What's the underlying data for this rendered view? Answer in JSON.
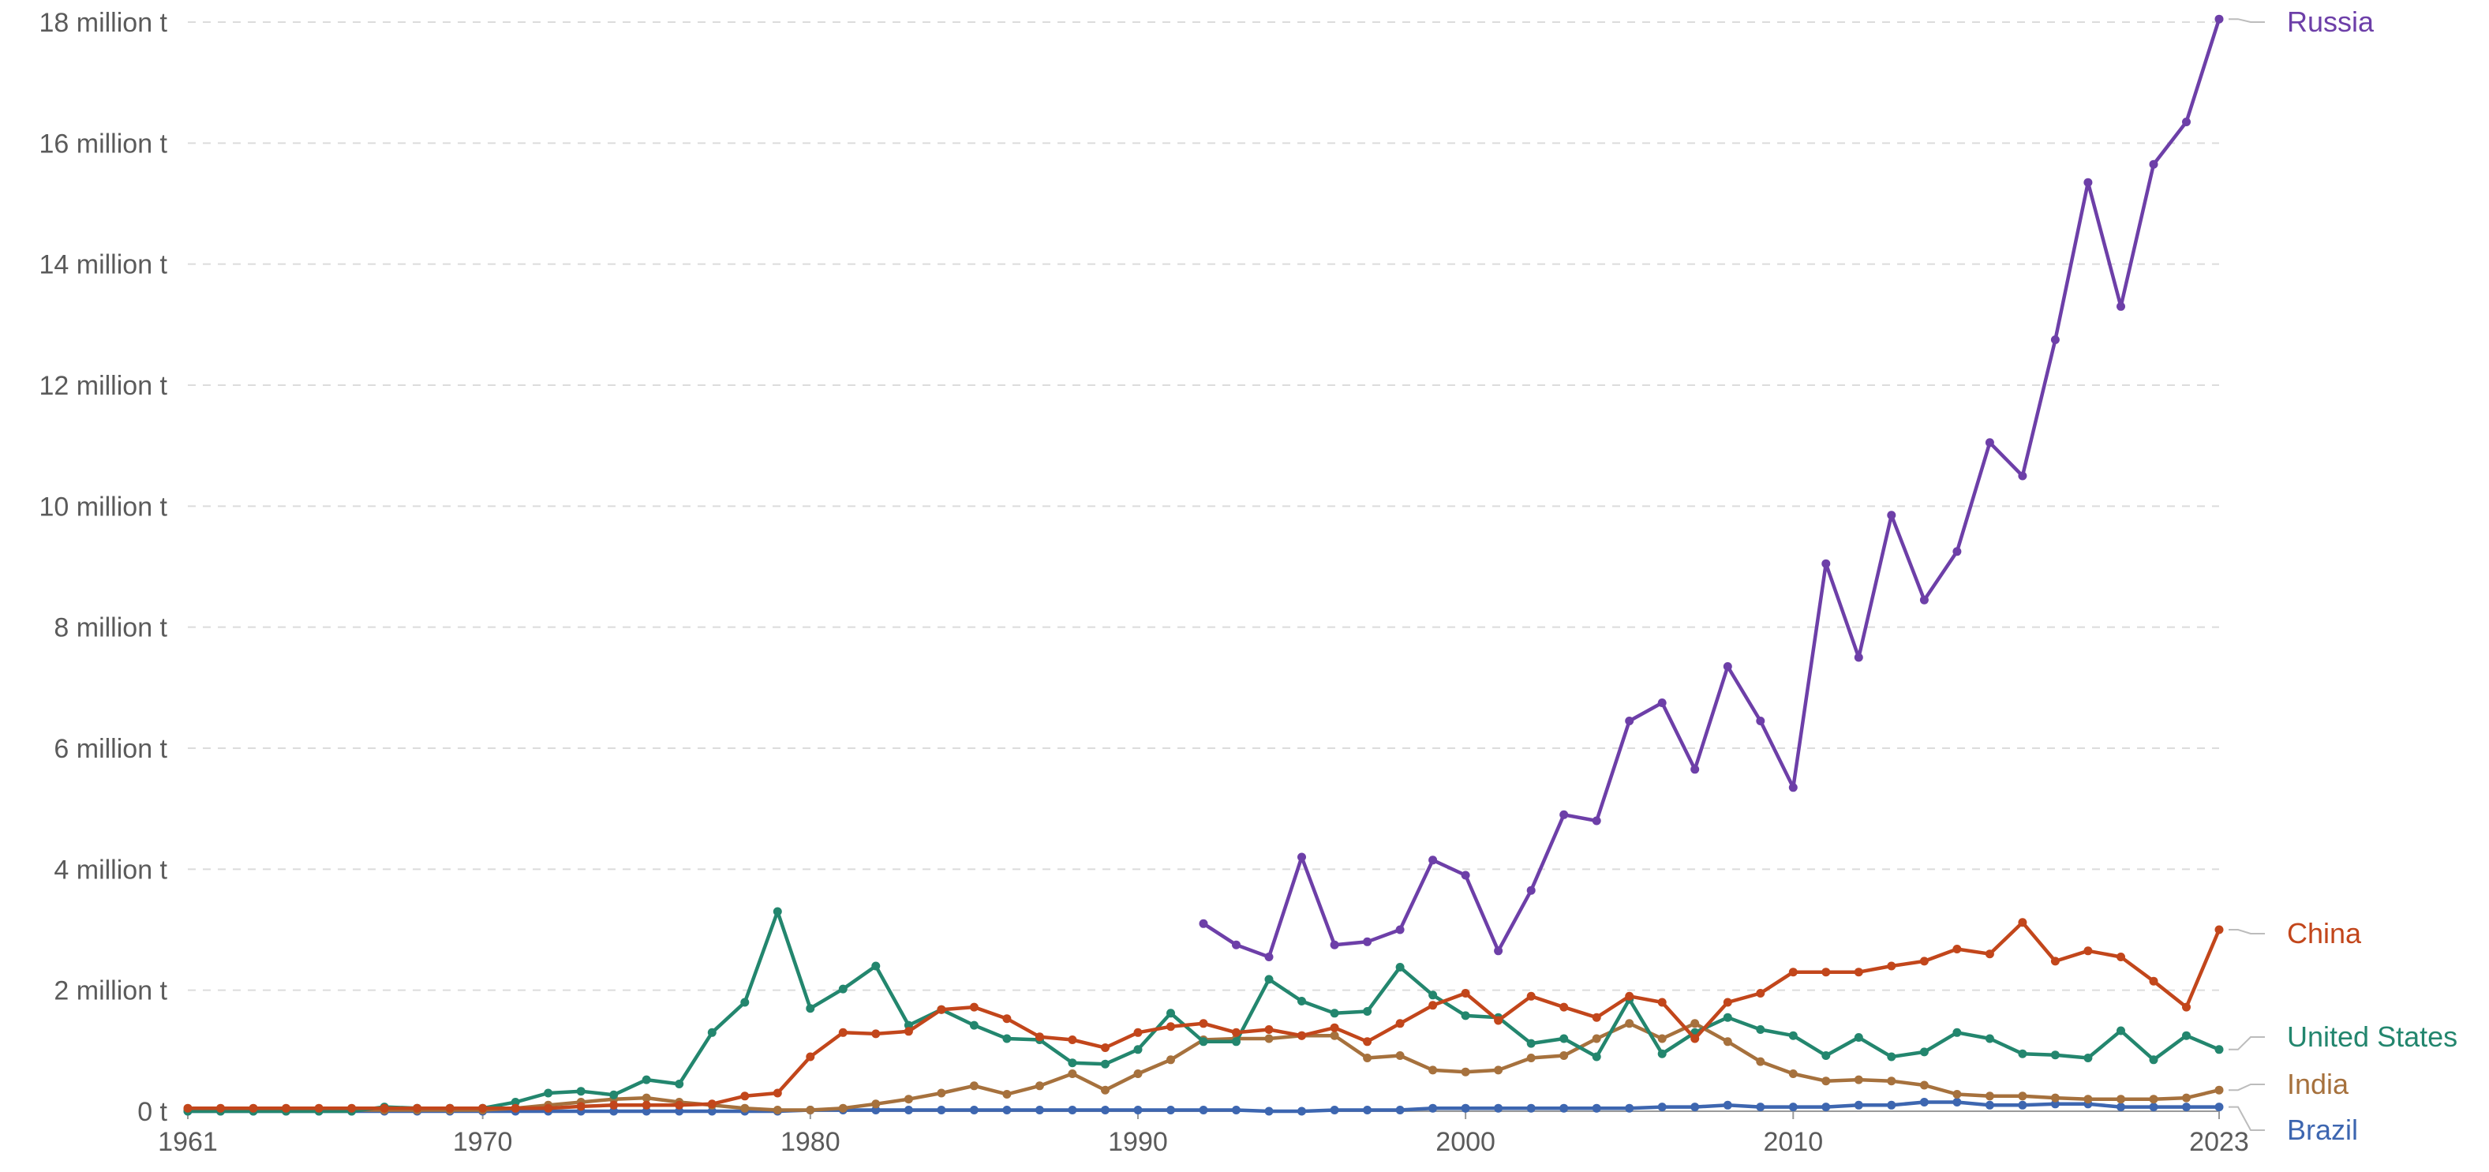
{
  "chart_data": {
    "type": "line",
    "title": "",
    "xlabel": "",
    "ylabel": "",
    "xlim": [
      1961,
      2023
    ],
    "ylim": [
      0,
      18
    ],
    "y_ticks": [
      {
        "value": 0,
        "label": "0 t"
      },
      {
        "value": 2,
        "label": "2 million t"
      },
      {
        "value": 4,
        "label": "4 million t"
      },
      {
        "value": 6,
        "label": "6 million t"
      },
      {
        "value": 8,
        "label": "8 million t"
      },
      {
        "value": 10,
        "label": "10 million t"
      },
      {
        "value": 12,
        "label": "12 million t"
      },
      {
        "value": 14,
        "label": "14 million t"
      },
      {
        "value": 16,
        "label": "16 million t"
      },
      {
        "value": 18,
        "label": "18 million t"
      }
    ],
    "x_ticks": [
      {
        "value": 1961,
        "label": "1961"
      },
      {
        "value": 1970,
        "label": "1970"
      },
      {
        "value": 1980,
        "label": "1980"
      },
      {
        "value": 1990,
        "label": "1990"
      },
      {
        "value": 2000,
        "label": "2000"
      },
      {
        "value": 2010,
        "label": "2010"
      },
      {
        "value": 2023,
        "label": "2023"
      }
    ],
    "grid": true,
    "legend": "right-end labels",
    "series": [
      {
        "name": "Russia",
        "color": "#6d3fa8",
        "x": [
          1992,
          1993,
          1994,
          1995,
          1996,
          1997,
          1998,
          1999,
          2000,
          2001,
          2002,
          2003,
          2004,
          2005,
          2006,
          2007,
          2008,
          2009,
          2010,
          2011,
          2012,
          2013,
          2014,
          2015,
          2016,
          2017,
          2018,
          2019,
          2020,
          2021,
          2022,
          2023
        ],
        "values": [
          3.1,
          2.75,
          2.55,
          4.2,
          2.75,
          2.8,
          3.0,
          4.15,
          3.9,
          2.65,
          3.65,
          4.9,
          4.8,
          6.45,
          6.75,
          5.65,
          7.35,
          6.45,
          5.35,
          9.05,
          7.5,
          9.85,
          8.45,
          9.25,
          11.05,
          10.5,
          12.75,
          15.35,
          13.3,
          15.65,
          16.35,
          18.05
        ]
      },
      {
        "name": "China",
        "color": "#c2461b",
        "x": [
          1961,
          1962,
          1963,
          1964,
          1965,
          1966,
          1967,
          1968,
          1969,
          1970,
          1971,
          1972,
          1973,
          1974,
          1975,
          1976,
          1977,
          1978,
          1979,
          1980,
          1981,
          1982,
          1983,
          1984,
          1985,
          1986,
          1987,
          1988,
          1989,
          1990,
          1991,
          1992,
          1993,
          1994,
          1995,
          1996,
          1997,
          1998,
          1999,
          2000,
          2001,
          2002,
          2003,
          2004,
          2005,
          2006,
          2007,
          2008,
          2009,
          2010,
          2011,
          2012,
          2013,
          2014,
          2015,
          2016,
          2017,
          2018,
          2019,
          2020,
          2021,
          2022,
          2023
        ],
        "values": [
          0.05,
          0.05,
          0.05,
          0.05,
          0.05,
          0.05,
          0.05,
          0.05,
          0.05,
          0.05,
          0.05,
          0.05,
          0.08,
          0.1,
          0.1,
          0.1,
          0.12,
          0.25,
          0.3,
          0.9,
          1.3,
          1.28,
          1.32,
          1.68,
          1.72,
          1.53,
          1.23,
          1.18,
          1.05,
          1.3,
          1.4,
          1.45,
          1.3,
          1.35,
          1.25,
          1.38,
          1.15,
          1.45,
          1.75,
          1.95,
          1.5,
          1.9,
          1.72,
          1.55,
          1.9,
          1.8,
          1.2,
          1.8,
          1.95,
          2.3,
          2.3,
          2.3,
          2.4,
          2.48,
          2.68,
          2.6,
          3.12,
          2.48,
          2.65,
          2.55,
          2.15,
          1.72,
          3.0
        ]
      },
      {
        "name": "United States",
        "color": "#23866e",
        "x": [
          1961,
          1962,
          1963,
          1964,
          1965,
          1966,
          1967,
          1968,
          1969,
          1970,
          1971,
          1972,
          1973,
          1974,
          1975,
          1976,
          1977,
          1978,
          1979,
          1980,
          1981,
          1982,
          1983,
          1984,
          1985,
          1986,
          1987,
          1988,
          1989,
          1990,
          1991,
          1992,
          1993,
          1994,
          1995,
          1996,
          1997,
          1998,
          1999,
          2000,
          2001,
          2002,
          2003,
          2004,
          2005,
          2006,
          2007,
          2008,
          2009,
          2010,
          2011,
          2012,
          2013,
          2014,
          2015,
          2016,
          2017,
          2018,
          2019,
          2020,
          2021,
          2022,
          2023
        ],
        "values": [
          0.0,
          0.0,
          0.0,
          0.0,
          0.0,
          0.0,
          0.07,
          0.05,
          0.05,
          0.05,
          0.15,
          0.3,
          0.33,
          0.27,
          0.52,
          0.45,
          1.3,
          1.8,
          3.3,
          1.7,
          2.02,
          2.4,
          1.42,
          1.68,
          1.42,
          1.2,
          1.18,
          0.8,
          0.78,
          1.02,
          1.62,
          1.15,
          1.15,
          2.18,
          1.82,
          1.62,
          1.65,
          2.38,
          1.92,
          1.58,
          1.55,
          1.12,
          1.2,
          0.9,
          1.85,
          0.95,
          1.3,
          1.55,
          1.35,
          1.25,
          0.92,
          1.22,
          0.9,
          0.98,
          1.3,
          1.2,
          0.95,
          0.93,
          0.88,
          1.33,
          0.85,
          1.25,
          1.02
        ]
      },
      {
        "name": "India",
        "color": "#a6713d",
        "x": [
          1961,
          1962,
          1963,
          1964,
          1965,
          1966,
          1967,
          1968,
          1969,
          1970,
          1971,
          1972,
          1973,
          1974,
          1975,
          1976,
          1977,
          1978,
          1979,
          1980,
          1981,
          1982,
          1983,
          1984,
          1985,
          1986,
          1987,
          1988,
          1989,
          1990,
          1991,
          1992,
          1993,
          1994,
          1995,
          1996,
          1997,
          1998,
          1999,
          2000,
          2001,
          2002,
          2003,
          2004,
          2005,
          2006,
          2007,
          2008,
          2009,
          2010,
          2011,
          2012,
          2013,
          2014,
          2015,
          2016,
          2017,
          2018,
          2019,
          2020,
          2021,
          2022,
          2023
        ],
        "values": [
          0.02,
          0.02,
          0.02,
          0.02,
          0.02,
          0.02,
          0.02,
          0.02,
          0.02,
          0.02,
          0.05,
          0.1,
          0.15,
          0.2,
          0.22,
          0.15,
          0.1,
          0.05,
          0.02,
          0.02,
          0.05,
          0.12,
          0.2,
          0.3,
          0.42,
          0.28,
          0.42,
          0.62,
          0.35,
          0.62,
          0.85,
          1.18,
          1.2,
          1.2,
          1.25,
          1.25,
          0.88,
          0.92,
          0.68,
          0.65,
          0.68,
          0.88,
          0.92,
          1.2,
          1.45,
          1.2,
          1.45,
          1.15,
          0.82,
          0.62,
          0.5,
          0.52,
          0.5,
          0.43,
          0.28,
          0.25,
          0.25,
          0.22,
          0.2,
          0.2,
          0.2,
          0.22,
          0.35
        ]
      },
      {
        "name": "Brazil",
        "color": "#3d66b0",
        "x": [
          1961,
          1962,
          1963,
          1964,
          1965,
          1966,
          1967,
          1968,
          1969,
          1970,
          1971,
          1972,
          1973,
          1974,
          1975,
          1976,
          1977,
          1978,
          1979,
          1980,
          1981,
          1982,
          1983,
          1984,
          1985,
          1986,
          1987,
          1988,
          1989,
          1990,
          1991,
          1992,
          1993,
          1994,
          1995,
          1996,
          1997,
          1998,
          1999,
          2000,
          2001,
          2002,
          2003,
          2004,
          2005,
          2006,
          2007,
          2008,
          2009,
          2010,
          2011,
          2012,
          2013,
          2014,
          2015,
          2016,
          2017,
          2018,
          2019,
          2020,
          2021,
          2022,
          2023
        ],
        "values": [
          0.0,
          0.0,
          0.0,
          0.0,
          0.0,
          0.0,
          0.0,
          0.0,
          0.0,
          0.0,
          0.0,
          0.0,
          0.0,
          0.0,
          0.0,
          0.0,
          0.0,
          0.0,
          0.0,
          0.02,
          0.02,
          0.02,
          0.02,
          0.02,
          0.02,
          0.02,
          0.02,
          0.02,
          0.02,
          0.02,
          0.02,
          0.02,
          0.02,
          0.0,
          0.0,
          0.02,
          0.02,
          0.02,
          0.05,
          0.05,
          0.05,
          0.05,
          0.05,
          0.05,
          0.05,
          0.07,
          0.07,
          0.1,
          0.07,
          0.07,
          0.07,
          0.1,
          0.1,
          0.15,
          0.15,
          0.1,
          0.1,
          0.12,
          0.12,
          0.07,
          0.07,
          0.07,
          0.07
        ]
      }
    ]
  }
}
